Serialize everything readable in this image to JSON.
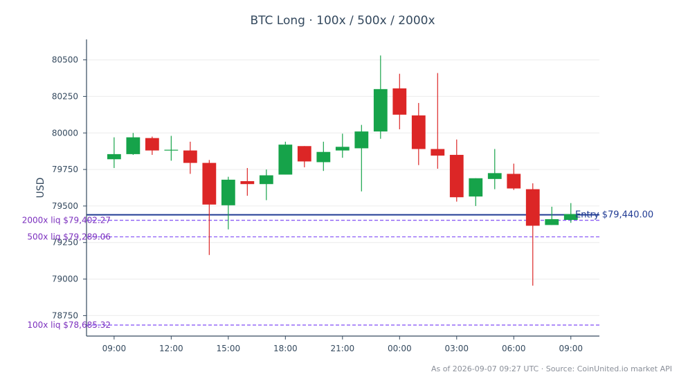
{
  "title": "BTC Long · 100x / 500x / 2000x",
  "footnote": "As of 2026-09-07 09:27 UTC · Source: CoinUnited.io market API",
  "colors": {
    "up": "#16a34a",
    "down": "#dc2626",
    "entry": "#1f3a93",
    "liq": "#8b5cf6",
    "liq_text": "#7b2fbe",
    "axis": "#34495e",
    "grid": "#ececec"
  },
  "chart_data": {
    "type": "candlestick",
    "title": "BTC Long · 100x / 500x / 2000x",
    "ylabel": "USD",
    "xlabel": "",
    "ylim": [
      78610,
      80640
    ],
    "yticks": [
      78750,
      79000,
      79250,
      79500,
      79750,
      80000,
      80250,
      80500
    ],
    "xlim": [
      7.55,
      34.5
    ],
    "xticks": [
      {
        "pos": 9,
        "label": "09:00"
      },
      {
        "pos": 12,
        "label": "12:00"
      },
      {
        "pos": 15,
        "label": "15:00"
      },
      {
        "pos": 18,
        "label": "18:00"
      },
      {
        "pos": 21,
        "label": "21:00"
      },
      {
        "pos": 24,
        "label": "00:00"
      },
      {
        "pos": 27,
        "label": "03:00"
      },
      {
        "pos": 30,
        "label": "06:00"
      },
      {
        "pos": 33,
        "label": "09:00"
      }
    ],
    "grid": true,
    "candles": [
      {
        "t": 9,
        "o": 79820,
        "h": 79970,
        "l": 79760,
        "c": 79855
      },
      {
        "t": 10,
        "o": 79855,
        "h": 80000,
        "l": 79850,
        "c": 79970
      },
      {
        "t": 11,
        "o": 79965,
        "h": 79975,
        "l": 79850,
        "c": 79880
      },
      {
        "t": 12,
        "o": 79880,
        "h": 79980,
        "l": 79810,
        "c": 79885
      },
      {
        "t": 13,
        "o": 79880,
        "h": 79940,
        "l": 79720,
        "c": 79795
      },
      {
        "t": 14,
        "o": 79795,
        "h": 79815,
        "l": 79165,
        "c": 79510
      },
      {
        "t": 15,
        "o": 79505,
        "h": 79700,
        "l": 79340,
        "c": 79680
      },
      {
        "t": 16,
        "o": 79670,
        "h": 79760,
        "l": 79570,
        "c": 79650
      },
      {
        "t": 17,
        "o": 79650,
        "h": 79750,
        "l": 79540,
        "c": 79710
      },
      {
        "t": 18,
        "o": 79715,
        "h": 79940,
        "l": 79715,
        "c": 79920
      },
      {
        "t": 19,
        "o": 79910,
        "h": 79910,
        "l": 79765,
        "c": 79805
      },
      {
        "t": 20,
        "o": 79800,
        "h": 79940,
        "l": 79740,
        "c": 79870
      },
      {
        "t": 21,
        "o": 79880,
        "h": 79995,
        "l": 79830,
        "c": 79905
      },
      {
        "t": 22,
        "o": 79895,
        "h": 80055,
        "l": 79600,
        "c": 80010
      },
      {
        "t": 23,
        "o": 80010,
        "h": 80530,
        "l": 79960,
        "c": 80300
      },
      {
        "t": 24,
        "o": 80305,
        "h": 80405,
        "l": 80025,
        "c": 80125
      },
      {
        "t": 25,
        "o": 80120,
        "h": 80205,
        "l": 79780,
        "c": 79890
      },
      {
        "t": 26,
        "o": 79890,
        "h": 80410,
        "l": 79755,
        "c": 79845
      },
      {
        "t": 27,
        "o": 79850,
        "h": 79955,
        "l": 79530,
        "c": 79560
      },
      {
        "t": 28,
        "o": 79565,
        "h": 79690,
        "l": 79500,
        "c": 79690
      },
      {
        "t": 29,
        "o": 79685,
        "h": 79890,
        "l": 79615,
        "c": 79725
      },
      {
        "t": 30,
        "o": 79720,
        "h": 79790,
        "l": 79610,
        "c": 79620
      },
      {
        "t": 31,
        "o": 79615,
        "h": 79655,
        "l": 78955,
        "c": 79365
      },
      {
        "t": 32,
        "o": 79370,
        "h": 79495,
        "l": 79370,
        "c": 79410
      },
      {
        "t": 33,
        "o": 79405,
        "h": 79520,
        "l": 79385,
        "c": 79445
      }
    ],
    "lines": [
      {
        "key": "entry",
        "label": "Entry $79,440.00",
        "value": 79440.0
      },
      {
        "key": "liq2000",
        "label": "2000x liq $79,402.27",
        "value": 79402.27
      },
      {
        "key": "liq500",
        "label": "500x liq $79,289.06",
        "value": 79289.06
      },
      {
        "key": "liq100",
        "label": "100x liq $78,685.32",
        "value": 78685.32
      }
    ]
  }
}
